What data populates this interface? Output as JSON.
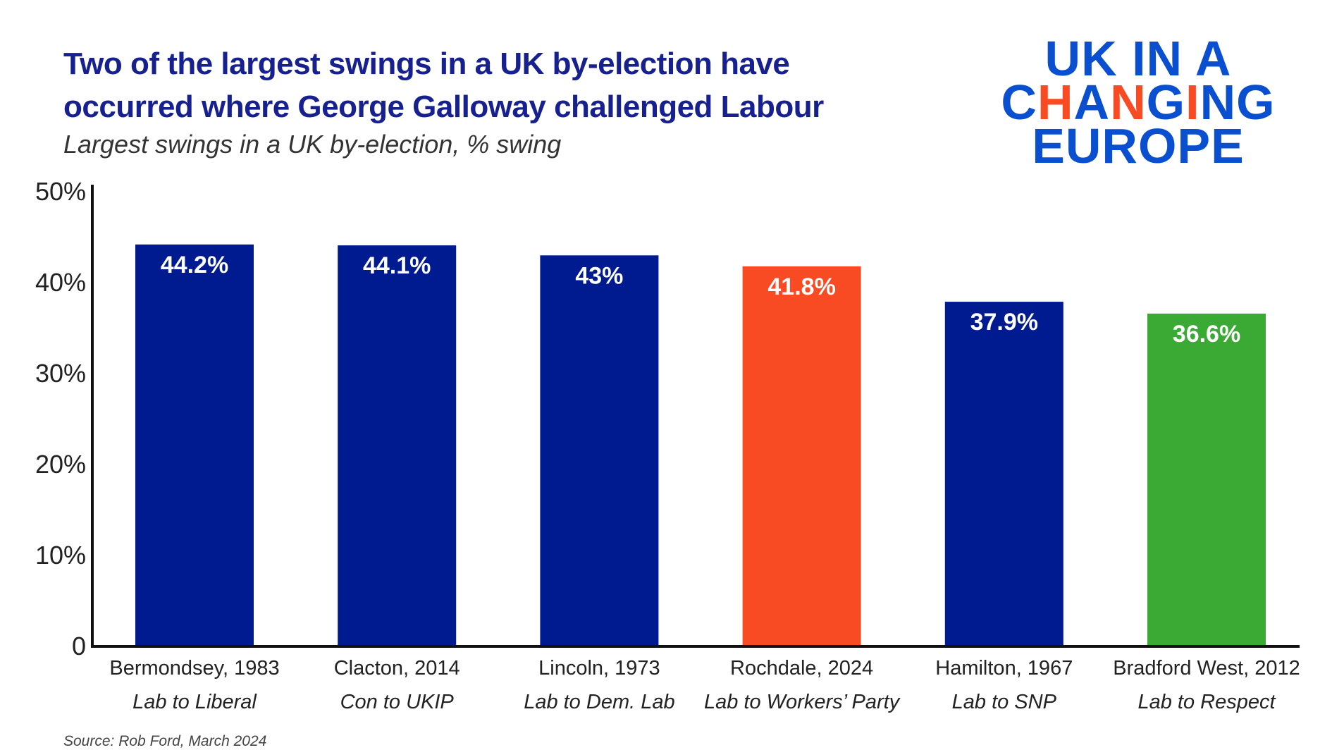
{
  "chart_data": {
    "type": "bar",
    "title": "Two of the largest swings in a UK by-election have occurred where George Galloway challenged Labour",
    "title_lines": [
      "Two of the largest swings in a UK by-election have",
      "occurred where George Galloway challenged Labour"
    ],
    "subtitle": "Largest swings in a UK by-election, % swing",
    "categories": [
      "Bermondsey, 1983",
      "Clacton, 2014",
      "Lincoln, 1973",
      "Rochdale,  2024",
      "Hamilton, 1967",
      "Bradford West, 2012"
    ],
    "sublabels": [
      "Lab to Liberal",
      "Con to UKIP",
      "Lab to Dem. Lab",
      "Lab to Workers’ Party",
      "Lab to SNP",
      "Lab to Respect"
    ],
    "values": [
      44.2,
      44.1,
      43,
      41.8,
      37.9,
      36.6
    ],
    "data_labels": [
      "44.2%",
      "44.1%",
      "43%",
      "41.8%",
      "37.9%",
      "36.6%"
    ],
    "colors": [
      "#001a8f",
      "#001a8f",
      "#001a8f",
      "#f84a23",
      "#001a8f",
      "#3aaa35"
    ],
    "yticks": [
      0,
      10,
      20,
      30,
      40,
      50
    ],
    "ytick_labels": [
      "0",
      "10%",
      "20%",
      "30%",
      "40%",
      "50%"
    ],
    "ylim": [
      0,
      50
    ],
    "grid": false,
    "xlabel": "",
    "ylabel": ""
  },
  "logo": {
    "lines": [
      "UK IN A",
      "CHANGING",
      "EUROPE"
    ]
  },
  "source": "Source: Rob Ford, March 2024"
}
